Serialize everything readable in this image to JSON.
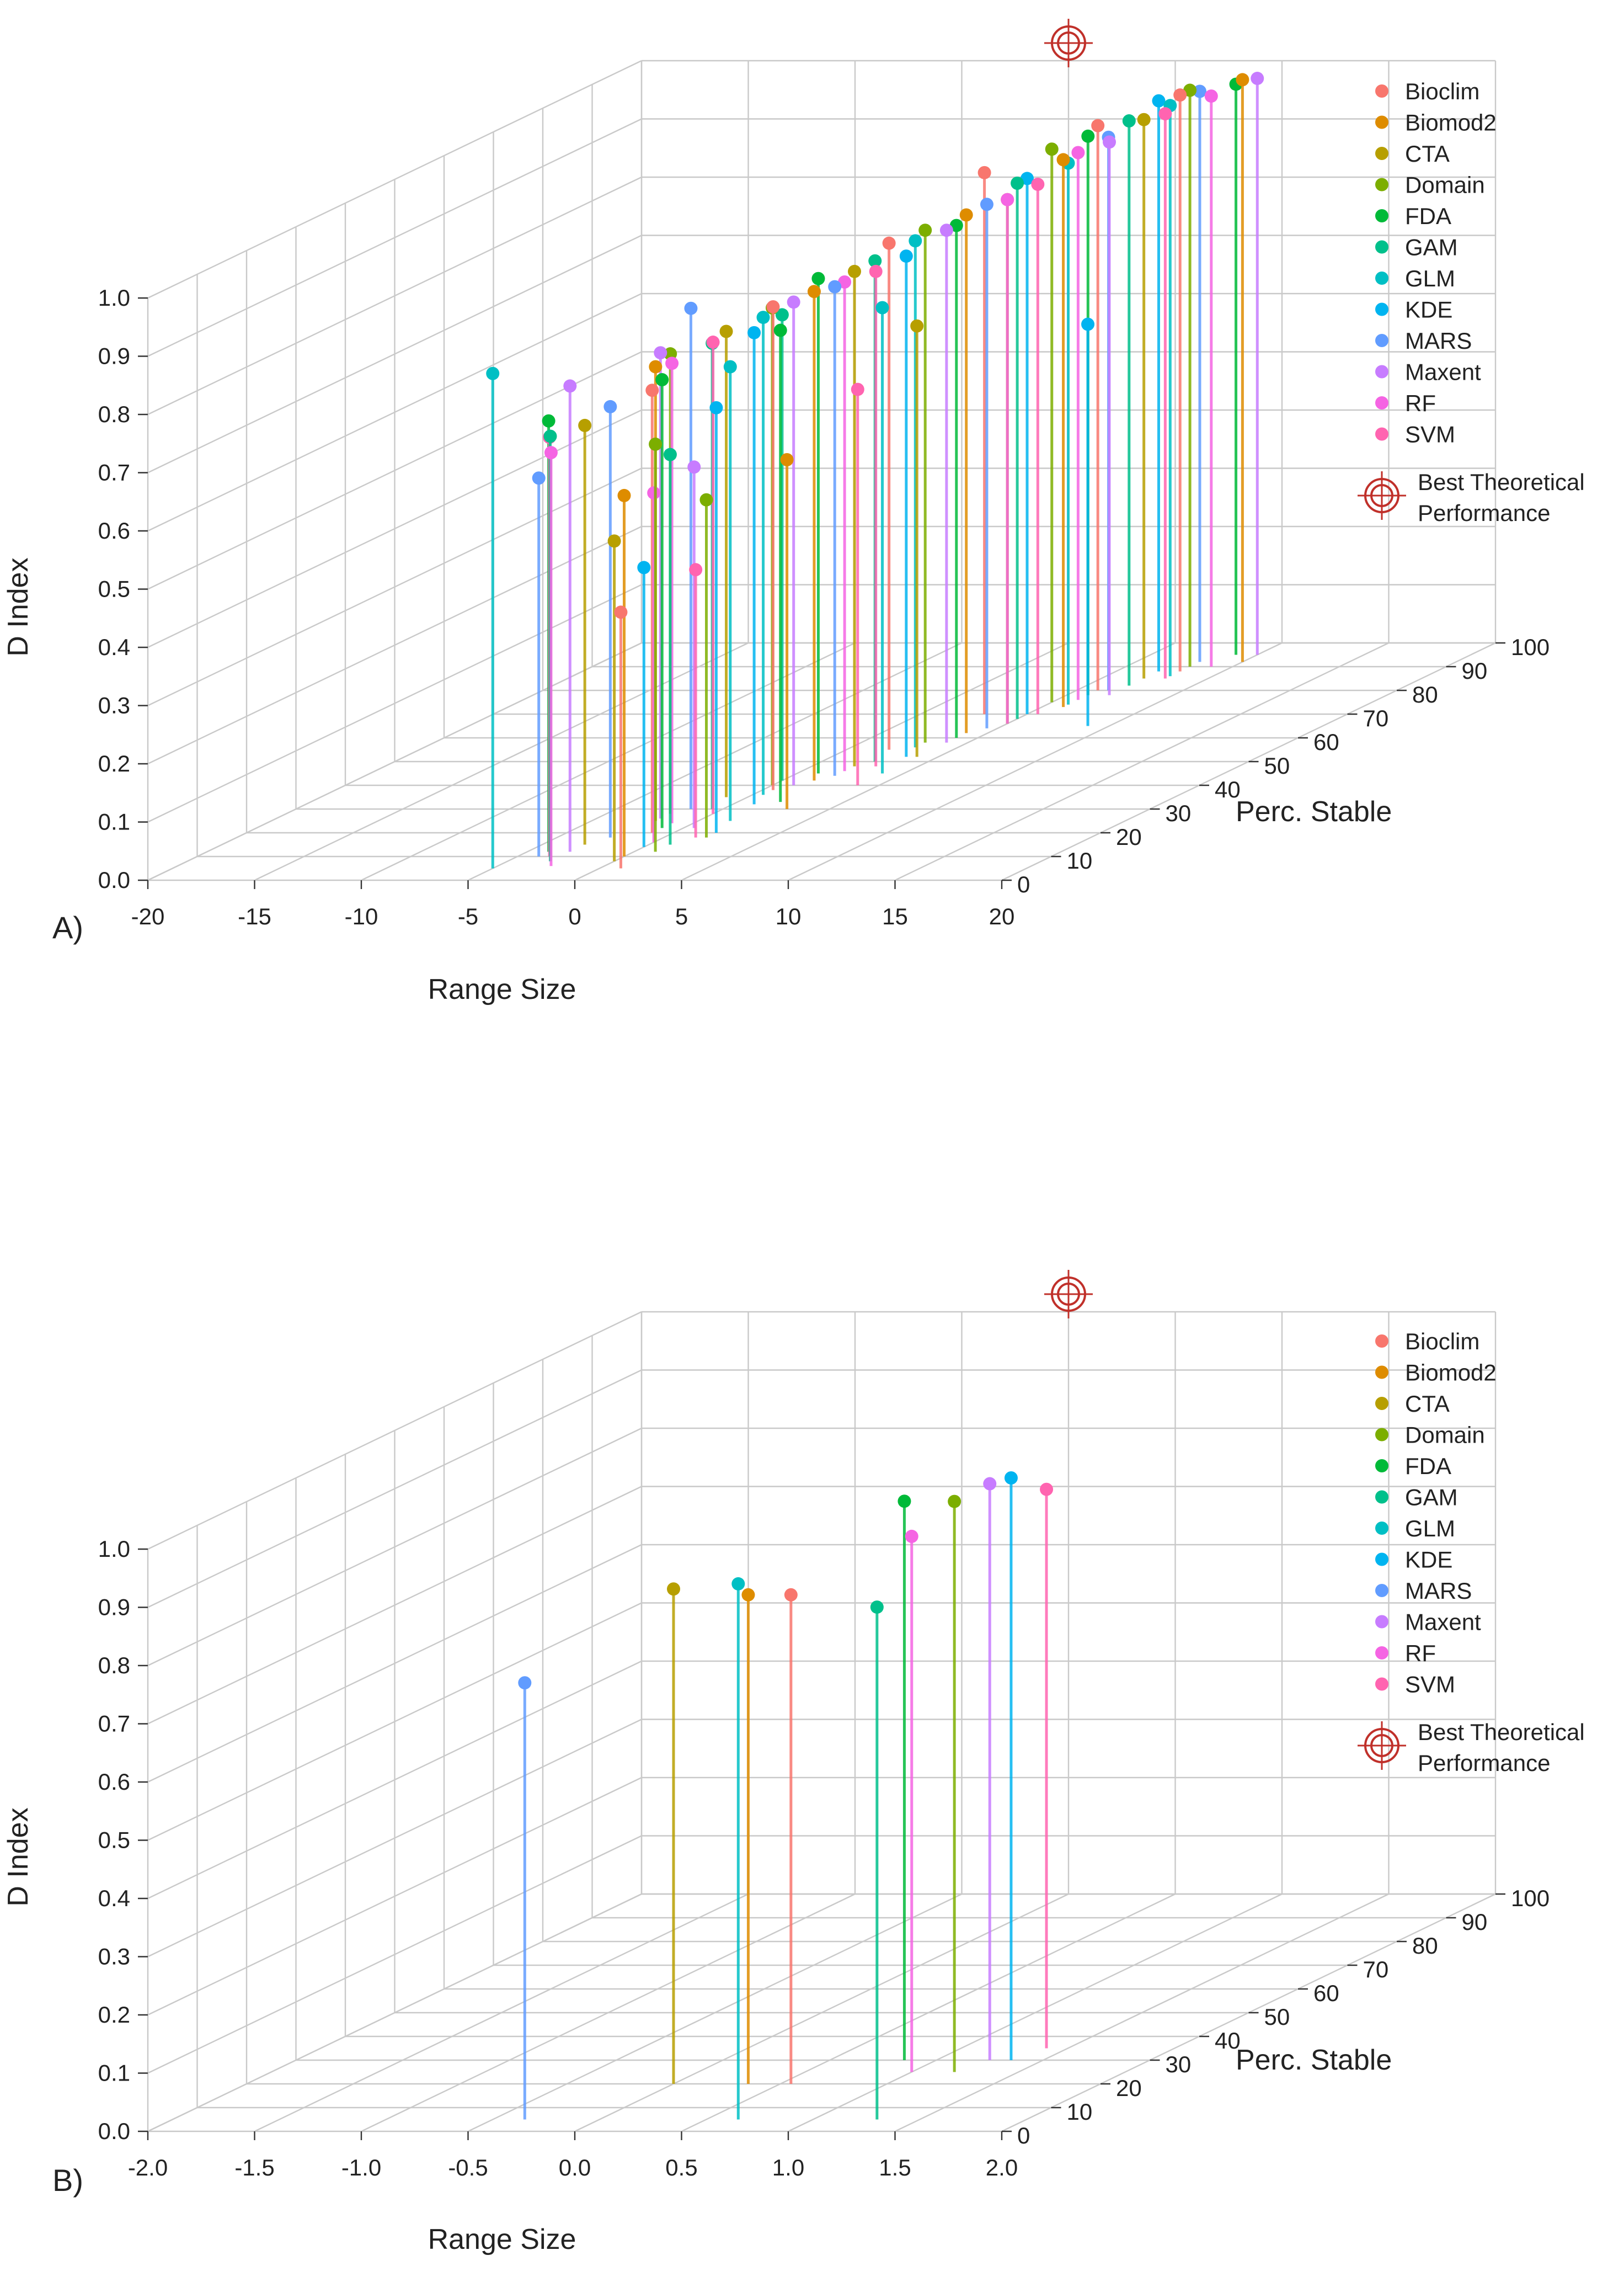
{
  "series_colors": {
    "Bioclim": "#F8766D",
    "Biomod2": "#DE8C00",
    "CTA": "#B79F00",
    "Domain": "#7CAE00",
    "FDA": "#00BA38",
    "GAM": "#00C08B",
    "GLM": "#00BFC4",
    "KDE": "#00B4F0",
    "MARS": "#619CFF",
    "Maxent": "#C77CFF",
    "RF": "#F564E3",
    "SVM": "#FF64B0"
  },
  "target_color": "#C0302A",
  "legend": {
    "items": [
      "Bioclim",
      "Biomod2",
      "CTA",
      "Domain",
      "FDA",
      "GAM",
      "GLM",
      "KDE",
      "MARS",
      "Maxent",
      "RF",
      "SVM"
    ],
    "best_line1": "Best Theoretical",
    "best_line2": "Performance"
  },
  "chart_data": [
    {
      "type": "scatter",
      "subtype": "3d-scatter-with-drop-lines",
      "panel_label": "A)",
      "xlabel": "Range Size",
      "ylabel": "Perc. Stable",
      "zlabel": "D Index",
      "xlim": [
        -20,
        20
      ],
      "ylim": [
        0,
        100
      ],
      "zlim": [
        0,
        1
      ],
      "x_ticks": [
        "-20",
        "-15",
        "-10",
        "-5",
        "0",
        "5",
        "10",
        "15",
        "20"
      ],
      "y_ticks": [
        "0",
        "10",
        "20",
        "30",
        "40",
        "50",
        "60",
        "70",
        "80",
        "90",
        "100"
      ],
      "z_ticks": [
        "0.0",
        "0.1",
        "0.2",
        "0.3",
        "0.4",
        "0.5",
        "0.6",
        "0.7",
        "0.8",
        "0.9",
        "1.0"
      ],
      "best_theoretical_performance": {
        "x": 0,
        "y": 100,
        "z": 1.0
      },
      "legend_position": "right",
      "points": [
        {
          "model": "Bioclim",
          "x": 0.5,
          "y": 38,
          "z": 0.83
        },
        {
          "model": "Bioclim",
          "x": 2,
          "y": 55,
          "z": 0.87
        },
        {
          "model": "Bioclim",
          "x": -1,
          "y": 20,
          "z": 0.76
        },
        {
          "model": "Bioclim",
          "x": 3,
          "y": 70,
          "z": 0.93
        },
        {
          "model": "Bioclim",
          "x": 6,
          "y": 80,
          "z": 0.97
        },
        {
          "model": "Bioclim",
          "x": 1,
          "y": 5,
          "z": 0.44
        },
        {
          "model": "Bioclim",
          "x": 8,
          "y": 88,
          "z": 0.99
        },
        {
          "model": "Biomod2",
          "x": 1.5,
          "y": 42,
          "z": 0.84
        },
        {
          "model": "Biomod2",
          "x": -2,
          "y": 25,
          "z": 0.78
        },
        {
          "model": "Biomod2",
          "x": 4,
          "y": 62,
          "z": 0.89
        },
        {
          "model": "Biomod2",
          "x": 3,
          "y": 30,
          "z": 0.6
        },
        {
          "model": "Biomod2",
          "x": 10,
          "y": 92,
          "z": 1.0
        },
        {
          "model": "Biomod2",
          "x": 6,
          "y": 73,
          "z": 0.94
        },
        {
          "model": "Biomod2",
          "x": 0,
          "y": 10,
          "z": 0.62
        },
        {
          "model": "CTA",
          "x": -1,
          "y": 35,
          "z": 0.8
        },
        {
          "model": "CTA",
          "x": 2,
          "y": 48,
          "z": 0.85
        },
        {
          "model": "CTA",
          "x": 5,
          "y": 66,
          "z": 0.9
        },
        {
          "model": "CTA",
          "x": -3,
          "y": 15,
          "z": 0.72
        },
        {
          "model": "CTA",
          "x": 0,
          "y": 8,
          "z": 0.55
        },
        {
          "model": "CTA",
          "x": 7,
          "y": 85,
          "z": 0.96
        },
        {
          "model": "CTA",
          "x": 4,
          "y": 52,
          "z": 0.74
        },
        {
          "model": "Domain",
          "x": 0,
          "y": 40,
          "z": 0.82
        },
        {
          "model": "Domain",
          "x": 3,
          "y": 58,
          "z": 0.88
        },
        {
          "model": "Domain",
          "x": -2,
          "y": 28,
          "z": 0.79
        },
        {
          "model": "Domain",
          "x": 5,
          "y": 75,
          "z": 0.95
        },
        {
          "model": "Domain",
          "x": 8,
          "y": 90,
          "z": 0.99
        },
        {
          "model": "Domain",
          "x": 2,
          "y": 18,
          "z": 0.58
        },
        {
          "model": "Domain",
          "x": 1,
          "y": 12,
          "z": 0.7
        },
        {
          "model": "FDA",
          "x": 1,
          "y": 45,
          "z": 0.85
        },
        {
          "model": "FDA",
          "x": -1,
          "y": 22,
          "z": 0.77
        },
        {
          "model": "FDA",
          "x": 4,
          "y": 60,
          "z": 0.88
        },
        {
          "model": "FDA",
          "x": 6,
          "y": 78,
          "z": 0.96
        },
        {
          "model": "FDA",
          "x": 9,
          "y": 95,
          "z": 0.98
        },
        {
          "model": "FDA",
          "x": -4,
          "y": 12,
          "z": 0.74
        },
        {
          "model": "FDA",
          "x": 2,
          "y": 33,
          "z": 0.81
        },
        {
          "model": "GAM",
          "x": -0.5,
          "y": 30,
          "z": 0.8
        },
        {
          "model": "GAM",
          "x": 2.5,
          "y": 50,
          "z": 0.86
        },
        {
          "model": "GAM",
          "x": 5,
          "y": 68,
          "z": 0.92
        },
        {
          "model": "GAM",
          "x": -3,
          "y": 8,
          "z": 0.73
        },
        {
          "model": "GAM",
          "x": 1,
          "y": 15,
          "z": 0.67
        },
        {
          "model": "GAM",
          "x": 7,
          "y": 82,
          "z": 0.97
        },
        {
          "model": "GAM",
          "x": 0,
          "y": 42,
          "z": 0.8
        },
        {
          "model": "GLM",
          "x": 0.5,
          "y": 36,
          "z": 0.82
        },
        {
          "model": "GLM",
          "x": 3,
          "y": 56,
          "z": 0.87
        },
        {
          "model": "GLM",
          "x": -5,
          "y": 5,
          "z": 0.85
        },
        {
          "model": "GLM",
          "x": 6,
          "y": 74,
          "z": 0.93
        },
        {
          "model": "GLM",
          "x": 8,
          "y": 86,
          "z": 0.98
        },
        {
          "model": "GLM",
          "x": 1.5,
          "y": 25,
          "z": 0.78
        },
        {
          "model": "GLM",
          "x": 4,
          "y": 45,
          "z": 0.8
        },
        {
          "model": "KDE",
          "x": 1,
          "y": 32,
          "z": 0.81
        },
        {
          "model": "KDE",
          "x": 3.5,
          "y": 52,
          "z": 0.86
        },
        {
          "model": "KDE",
          "x": 0,
          "y": 14,
          "z": 0.48
        },
        {
          "model": "KDE",
          "x": 5,
          "y": 70,
          "z": 0.92
        },
        {
          "model": "KDE",
          "x": 9,
          "y": 65,
          "z": 0.69
        },
        {
          "model": "KDE",
          "x": 7,
          "y": 88,
          "z": 0.98
        },
        {
          "model": "KDE",
          "x": 2,
          "y": 20,
          "z": 0.73
        },
        {
          "model": "MARS",
          "x": -1.5,
          "y": 30,
          "z": 0.86
        },
        {
          "model": "MARS",
          "x": 2,
          "y": 44,
          "z": 0.84
        },
        {
          "model": "MARS",
          "x": -4,
          "y": 10,
          "z": 0.65
        },
        {
          "model": "MARS",
          "x": 4.5,
          "y": 64,
          "z": 0.9
        },
        {
          "model": "MARS",
          "x": 6.5,
          "y": 80,
          "z": 0.95
        },
        {
          "model": "MARS",
          "x": -2.5,
          "y": 18,
          "z": 0.74
        },
        {
          "model": "MARS",
          "x": 8,
          "y": 92,
          "z": 0.98
        },
        {
          "model": "Maxent",
          "x": -2,
          "y": 26,
          "z": 0.8
        },
        {
          "model": "Maxent",
          "x": 1,
          "y": 40,
          "z": 0.83
        },
        {
          "model": "Maxent",
          "x": 4,
          "y": 58,
          "z": 0.88
        },
        {
          "model": "Maxent",
          "x": -3,
          "y": 12,
          "z": 0.8
        },
        {
          "model": "Maxent",
          "x": 0.5,
          "y": 22,
          "z": 0.62
        },
        {
          "model": "Maxent",
          "x": 7,
          "y": 78,
          "z": 0.95
        },
        {
          "model": "Maxent",
          "x": 10,
          "y": 95,
          "z": 0.99
        },
        {
          "model": "RF",
          "x": -1,
          "y": 24,
          "z": 0.79
        },
        {
          "model": "RF",
          "x": 2,
          "y": 46,
          "z": 0.84
        },
        {
          "model": "RF",
          "x": 5,
          "y": 66,
          "z": 0.9
        },
        {
          "model": "RF",
          "x": -2.5,
          "y": 6,
          "z": 0.71
        },
        {
          "model": "RF",
          "x": 0,
          "y": 16,
          "z": 0.6
        },
        {
          "model": "RF",
          "x": 6,
          "y": 76,
          "z": 0.94
        },
        {
          "model": "RF",
          "x": 9,
          "y": 90,
          "z": 0.98
        },
        {
          "model": "SVM",
          "x": 0,
          "y": 28,
          "z": 0.81
        },
        {
          "model": "SVM",
          "x": 3,
          "y": 48,
          "z": 0.85
        },
        {
          "model": "SVM",
          "x": -3.5,
          "y": 10,
          "z": 0.72
        },
        {
          "model": "SVM",
          "x": 1.5,
          "y": 18,
          "z": 0.46
        },
        {
          "model": "SVM",
          "x": 5.5,
          "y": 70,
          "z": 0.91
        },
        {
          "model": "SVM",
          "x": 4,
          "y": 40,
          "z": 0.68
        },
        {
          "model": "SVM",
          "x": 8,
          "y": 85,
          "z": 0.97
        }
      ]
    },
    {
      "type": "scatter",
      "subtype": "3d-scatter-with-drop-lines",
      "panel_label": "B)",
      "xlabel": "Range Size",
      "ylabel": "Perc. Stable",
      "zlabel": "D Index",
      "xlim": [
        -2,
        2
      ],
      "ylim": [
        0,
        100
      ],
      "zlim": [
        0,
        1
      ],
      "x_ticks": [
        "-2.0",
        "-1.5",
        "-1.0",
        "-0.5",
        "0.0",
        "0.5",
        "1.0",
        "1.5",
        "2.0"
      ],
      "y_ticks": [
        "0",
        "10",
        "20",
        "30",
        "40",
        "50",
        "60",
        "70",
        "80",
        "90",
        "100"
      ],
      "z_ticks": [
        "0.0",
        "0.1",
        "0.2",
        "0.3",
        "0.4",
        "0.5",
        "0.6",
        "0.7",
        "0.8",
        "0.9",
        "1.0"
      ],
      "best_theoretical_performance": {
        "x": 0,
        "y": 100,
        "z": 1.0
      },
      "legend_position": "right",
      "points": [
        {
          "model": "MARS",
          "x": -0.35,
          "y": 5,
          "z": 0.75
        },
        {
          "model": "CTA",
          "x": 0.0,
          "y": 20,
          "z": 0.85
        },
        {
          "model": "Biomod2",
          "x": 0.35,
          "y": 20,
          "z": 0.84
        },
        {
          "model": "Bioclim",
          "x": 0.55,
          "y": 20,
          "z": 0.84
        },
        {
          "model": "GLM",
          "x": 0.65,
          "y": 5,
          "z": 0.92
        },
        {
          "model": "FDA",
          "x": 0.85,
          "y": 30,
          "z": 0.96
        },
        {
          "model": "RF",
          "x": 1.0,
          "y": 25,
          "z": 0.92
        },
        {
          "model": "Domain",
          "x": 1.2,
          "y": 25,
          "z": 0.98
        },
        {
          "model": "Maxent",
          "x": 1.25,
          "y": 30,
          "z": 0.99
        },
        {
          "model": "GAM",
          "x": 1.3,
          "y": 5,
          "z": 0.88
        },
        {
          "model": "SVM",
          "x": 1.4,
          "y": 35,
          "z": 0.96
        },
        {
          "model": "KDE",
          "x": 1.35,
          "y": 30,
          "z": 1.0
        }
      ]
    }
  ]
}
